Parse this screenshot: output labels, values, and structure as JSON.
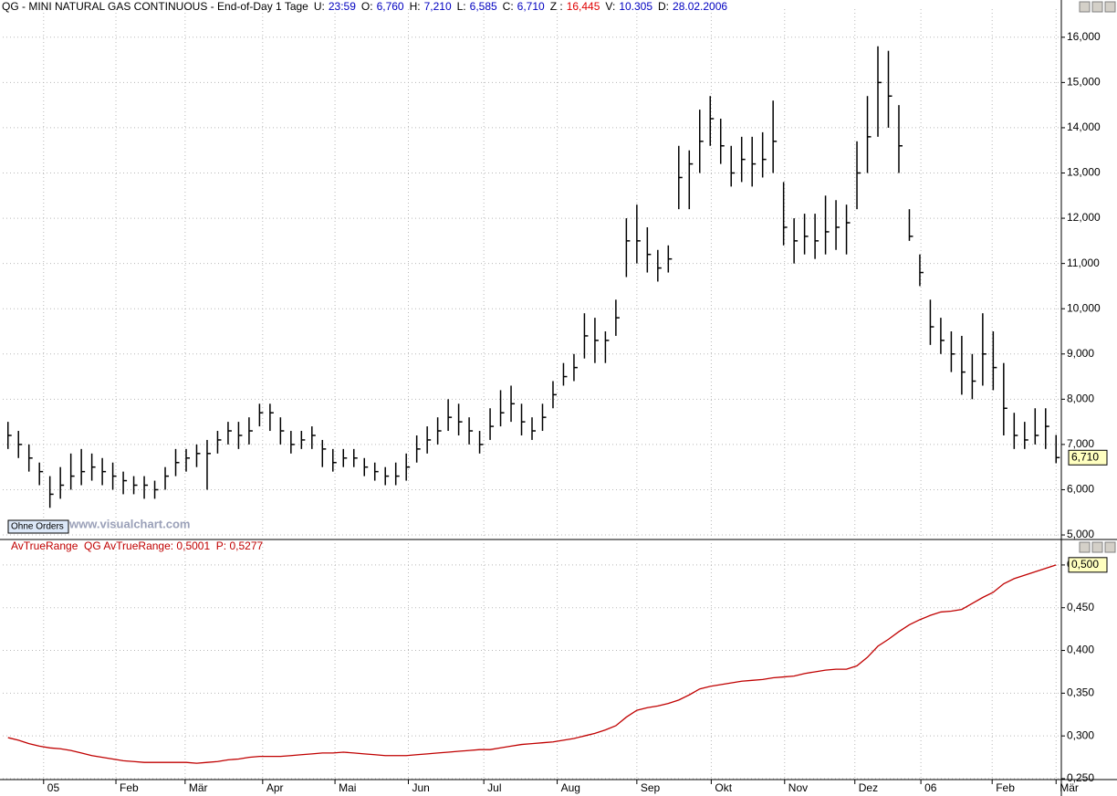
{
  "chart_data": [
    {
      "type": "ohlc",
      "title": "QG - MINI NATURAL GAS CONTINUOUS - End-of-Day 1 Tage",
      "info": [
        {
          "label": "U:",
          "value": "23:59",
          "color": "#0000c0"
        },
        {
          "label": "O:",
          "value": "6,760",
          "color": "#0000c0"
        },
        {
          "label": "H:",
          "value": "7,210",
          "color": "#0000c0"
        },
        {
          "label": "L:",
          "value": "6,585",
          "color": "#0000c0"
        },
        {
          "label": "C:",
          "value": "6,710",
          "color": "#0000c0"
        },
        {
          "label": "Z :",
          "value": "16,445",
          "color": "#e00000"
        },
        {
          "label": "V:",
          "value": "10.305",
          "color": "#0000c0"
        },
        {
          "label": "D:",
          "value": "28.02.2006",
          "color": "#0000c0"
        }
      ],
      "button": "Ohne Orders",
      "watermark": "www.visualchart.com",
      "color": "#000000",
      "high": [
        7.5,
        7.3,
        7.0,
        6.6,
        6.3,
        6.5,
        6.8,
        6.9,
        6.8,
        6.7,
        6.6,
        6.4,
        6.3,
        6.3,
        6.2,
        6.5,
        6.9,
        6.9,
        7.0,
        7.1,
        7.3,
        7.5,
        7.5,
        7.6,
        7.9,
        7.9,
        7.6,
        7.3,
        7.3,
        7.4,
        7.1,
        6.9,
        6.9,
        6.9,
        6.7,
        6.6,
        6.5,
        6.6,
        6.8,
        7.2,
        7.4,
        7.6,
        8.0,
        7.9,
        7.6,
        7.3,
        7.8,
        8.2,
        8.3,
        7.9,
        7.6,
        7.9,
        8.4,
        8.8,
        9.0,
        9.9,
        9.8,
        9.5,
        10.2,
        12.0,
        12.3,
        11.8,
        11.3,
        11.4,
        13.6,
        13.5,
        14.4,
        14.7,
        14.2,
        13.6,
        13.8,
        13.8,
        13.9,
        14.6,
        12.8,
        12.0,
        12.1,
        12.1,
        12.5,
        12.4,
        12.3,
        13.7,
        14.7,
        15.8,
        15.7,
        14.5,
        12.2,
        11.2,
        10.2,
        9.8,
        9.5,
        9.4,
        9.0,
        9.9,
        9.5,
        8.8,
        7.7,
        7.5,
        7.8,
        7.8,
        7.21
      ],
      "low": [
        6.9,
        6.7,
        6.4,
        6.1,
        5.6,
        5.8,
        6.0,
        6.1,
        6.2,
        6.1,
        6.0,
        5.9,
        5.9,
        5.8,
        5.8,
        6.0,
        6.3,
        6.4,
        6.5,
        6.0,
        6.8,
        7.0,
        6.9,
        7.0,
        7.4,
        7.3,
        7.0,
        6.8,
        6.9,
        6.9,
        6.5,
        6.4,
        6.5,
        6.5,
        6.3,
        6.2,
        6.1,
        6.1,
        6.2,
        6.6,
        6.8,
        7.0,
        7.3,
        7.2,
        7.0,
        6.8,
        7.1,
        7.4,
        7.5,
        7.2,
        7.1,
        7.3,
        7.8,
        8.3,
        8.4,
        8.9,
        8.8,
        8.8,
        9.4,
        10.7,
        11.0,
        10.8,
        10.6,
        10.8,
        12.2,
        12.2,
        13.0,
        13.6,
        13.2,
        12.7,
        12.8,
        12.7,
        12.9,
        13.0,
        11.4,
        11.0,
        11.2,
        11.1,
        11.2,
        11.3,
        11.2,
        12.2,
        13.0,
        13.8,
        14.0,
        13.0,
        11.5,
        10.5,
        9.2,
        9.0,
        8.6,
        8.1,
        8.0,
        8.3,
        8.2,
        7.2,
        6.9,
        6.9,
        7.0,
        6.9,
        6.585
      ],
      "close": [
        7.2,
        7.0,
        6.7,
        6.4,
        5.9,
        6.1,
        6.3,
        6.4,
        6.5,
        6.4,
        6.3,
        6.2,
        6.1,
        6.1,
        6.0,
        6.3,
        6.6,
        6.7,
        6.8,
        6.8,
        7.1,
        7.3,
        7.2,
        7.3,
        7.7,
        7.7,
        7.3,
        7.0,
        7.1,
        7.2,
        6.9,
        6.6,
        6.7,
        6.7,
        6.5,
        6.4,
        6.3,
        6.3,
        6.5,
        6.9,
        7.1,
        7.3,
        7.6,
        7.5,
        7.3,
        7.0,
        7.4,
        7.7,
        7.9,
        7.5,
        7.3,
        7.6,
        8.1,
        8.5,
        8.7,
        9.4,
        9.3,
        9.3,
        9.8,
        11.5,
        11.5,
        11.2,
        10.9,
        11.1,
        12.9,
        13.2,
        13.7,
        14.2,
        13.6,
        13.0,
        13.3,
        13.2,
        13.3,
        13.7,
        11.8,
        11.5,
        11.6,
        11.5,
        11.7,
        11.8,
        11.9,
        13.0,
        13.8,
        15.0,
        14.7,
        13.6,
        11.6,
        10.8,
        9.6,
        9.3,
        9.0,
        8.6,
        8.4,
        9.0,
        8.7,
        7.8,
        7.2,
        7.1,
        7.2,
        7.4,
        6.71
      ],
      "last_value_label": "6,710",
      "xlim": [
        -0.5,
        100.5
      ],
      "xticks": [
        {
          "value": 3.4,
          "label": "05"
        },
        {
          "value": 10.3,
          "label": "Feb"
        },
        {
          "value": 16.9,
          "label": "Mär"
        },
        {
          "value": 24.3,
          "label": "Apr"
        },
        {
          "value": 31.2,
          "label": "Mai"
        },
        {
          "value": 38.2,
          "label": "Jun"
        },
        {
          "value": 45.4,
          "label": "Jul"
        },
        {
          "value": 52.4,
          "label": "Aug"
        },
        {
          "value": 60,
          "label": "Sep"
        },
        {
          "value": 67.1,
          "label": "Okt"
        },
        {
          "value": 74.1,
          "label": "Nov"
        },
        {
          "value": 80.8,
          "label": "Dez"
        },
        {
          "value": 87.1,
          "label": "06"
        },
        {
          "value": 93.9,
          "label": "Feb"
        },
        {
          "value": 100,
          "label": "Mär"
        }
      ],
      "ylim": [
        4.92,
        16.46
      ],
      "yticks": [
        {
          "value": 5,
          "label": "5,000"
        },
        {
          "value": 6,
          "label": "6,000"
        },
        {
          "value": 7,
          "label": "7,000"
        },
        {
          "value": 8,
          "label": "8,000"
        },
        {
          "value": 9,
          "label": "9,000"
        },
        {
          "value": 10,
          "label": "10,000"
        },
        {
          "value": 11,
          "label": "11,000"
        },
        {
          "value": 12,
          "label": "12,000"
        },
        {
          "value": 13,
          "label": "13,000"
        },
        {
          "value": 14,
          "label": "14,000"
        },
        {
          "value": 15,
          "label": "15,000"
        },
        {
          "value": 16,
          "label": "16,000"
        }
      ],
      "grid": true
    },
    {
      "type": "line",
      "title": "AvTrueRange  QG AvTrueRange: 0,5001  P: 0,5277",
      "color": "#c00000",
      "values": [
        0.298,
        0.295,
        0.291,
        0.288,
        0.286,
        0.285,
        0.283,
        0.28,
        0.277,
        0.275,
        0.273,
        0.271,
        0.27,
        0.269,
        0.269,
        0.269,
        0.269,
        0.269,
        0.268,
        0.269,
        0.27,
        0.272,
        0.273,
        0.275,
        0.276,
        0.276,
        0.276,
        0.277,
        0.278,
        0.279,
        0.28,
        0.28,
        0.281,
        0.28,
        0.279,
        0.278,
        0.277,
        0.277,
        0.277,
        0.278,
        0.279,
        0.28,
        0.281,
        0.282,
        0.283,
        0.284,
        0.284,
        0.286,
        0.288,
        0.29,
        0.291,
        0.292,
        0.293,
        0.295,
        0.297,
        0.3,
        0.303,
        0.307,
        0.312,
        0.322,
        0.33,
        0.333,
        0.335,
        0.338,
        0.342,
        0.348,
        0.355,
        0.358,
        0.36,
        0.362,
        0.364,
        0.365,
        0.366,
        0.368,
        0.369,
        0.37,
        0.373,
        0.375,
        0.377,
        0.378,
        0.378,
        0.382,
        0.392,
        0.405,
        0.413,
        0.422,
        0.43,
        0.436,
        0.441,
        0.445,
        0.446,
        0.448,
        0.455,
        0.462,
        0.468,
        0.478,
        0.484,
        0.488,
        0.492,
        0.496,
        0.5001
      ],
      "last_value_label": "0,500",
      "ylim": [
        0.25,
        0.517
      ],
      "yticks": [
        {
          "value": 0.25,
          "label": "0,250"
        },
        {
          "value": 0.3,
          "label": "0,300"
        },
        {
          "value": 0.35,
          "label": "0,350"
        },
        {
          "value": 0.4,
          "label": "0,400"
        },
        {
          "value": 0.45,
          "label": "0,450"
        },
        {
          "value": 0.5,
          "label": "0,500"
        }
      ],
      "grid": true
    }
  ]
}
